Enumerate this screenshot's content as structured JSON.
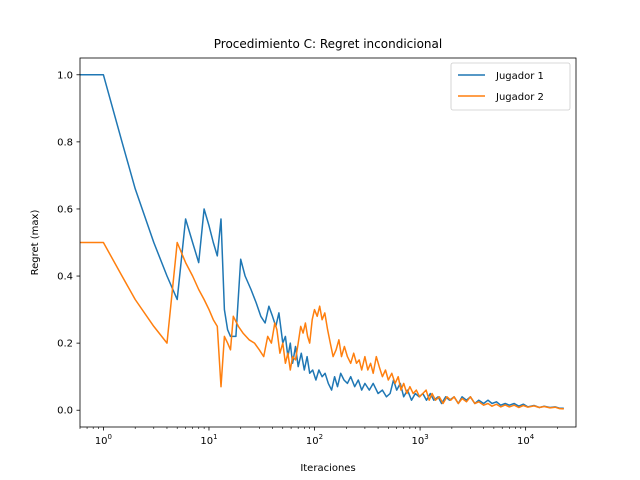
{
  "chart_data": {
    "type": "line",
    "title": "Procedimiento C: Regret incondicional",
    "xlabel": "Iteraciones",
    "ylabel": "Regret (max)",
    "xscale": "log",
    "xlim": [
      0.6,
      30000
    ],
    "ylim": [
      -0.05,
      1.05
    ],
    "xticks": [
      {
        "value": 1,
        "base": "10",
        "exp": "0"
      },
      {
        "value": 10,
        "base": "10",
        "exp": "1"
      },
      {
        "value": 100,
        "base": "10",
        "exp": "2"
      },
      {
        "value": 1000,
        "base": "10",
        "exp": "3"
      },
      {
        "value": 10000,
        "base": "10",
        "exp": "4"
      }
    ],
    "yticks": [
      {
        "value": 0.0,
        "label": "0.0"
      },
      {
        "value": 0.2,
        "label": "0.2"
      },
      {
        "value": 0.4,
        "label": "0.4"
      },
      {
        "value": 0.6,
        "label": "0.6"
      },
      {
        "value": 0.8,
        "label": "0.8"
      },
      {
        "value": 1.0,
        "label": "1.0"
      }
    ],
    "grid": false,
    "legend_position": "top-right",
    "series": [
      {
        "name": "Jugador 1",
        "color": "#1f77b4",
        "points": [
          [
            0.6,
            1.0
          ],
          [
            1,
            1.0
          ],
          [
            1.5,
            0.8
          ],
          [
            2,
            0.66
          ],
          [
            3,
            0.5
          ],
          [
            4,
            0.4
          ],
          [
            5,
            0.33
          ],
          [
            6,
            0.57
          ],
          [
            7,
            0.5
          ],
          [
            8,
            0.44
          ],
          [
            9,
            0.6
          ],
          [
            10,
            0.55
          ],
          [
            11,
            0.5
          ],
          [
            12,
            0.46
          ],
          [
            13,
            0.57
          ],
          [
            14,
            0.3
          ],
          [
            15,
            0.24
          ],
          [
            16,
            0.22
          ],
          [
            18,
            0.22
          ],
          [
            20,
            0.45
          ],
          [
            22,
            0.4
          ],
          [
            25,
            0.36
          ],
          [
            28,
            0.32
          ],
          [
            31,
            0.28
          ],
          [
            34,
            0.26
          ],
          [
            37,
            0.31
          ],
          [
            40,
            0.28
          ],
          [
            43,
            0.25
          ],
          [
            46,
            0.29
          ],
          [
            50,
            0.2
          ],
          [
            53,
            0.22
          ],
          [
            56,
            0.16
          ],
          [
            59,
            0.2
          ],
          [
            62,
            0.14
          ],
          [
            66,
            0.19
          ],
          [
            70,
            0.13
          ],
          [
            75,
            0.17
          ],
          [
            80,
            0.12
          ],
          [
            85,
            0.16
          ],
          [
            90,
            0.11
          ],
          [
            96,
            0.12
          ],
          [
            103,
            0.09
          ],
          [
            110,
            0.12
          ],
          [
            118,
            0.1
          ],
          [
            126,
            0.11
          ],
          [
            135,
            0.08
          ],
          [
            145,
            0.06
          ],
          [
            155,
            0.1
          ],
          [
            165,
            0.07
          ],
          [
            177,
            0.11
          ],
          [
            190,
            0.09
          ],
          [
            205,
            0.08
          ],
          [
            220,
            0.1
          ],
          [
            240,
            0.07
          ],
          [
            260,
            0.09
          ],
          [
            280,
            0.06
          ],
          [
            300,
            0.08
          ],
          [
            330,
            0.06
          ],
          [
            360,
            0.08
          ],
          [
            400,
            0.05
          ],
          [
            440,
            0.06
          ],
          [
            480,
            0.04
          ],
          [
            520,
            0.05
          ],
          [
            560,
            0.09
          ],
          [
            600,
            0.06
          ],
          [
            650,
            0.08
          ],
          [
            700,
            0.04
          ],
          [
            760,
            0.06
          ],
          [
            830,
            0.03
          ],
          [
            900,
            0.05
          ],
          [
            980,
            0.04
          ],
          [
            1060,
            0.05
          ],
          [
            1150,
            0.03
          ],
          [
            1250,
            0.05
          ],
          [
            1350,
            0.03
          ],
          [
            1480,
            0.04
          ],
          [
            1600,
            0.02
          ],
          [
            1750,
            0.04
          ],
          [
            1900,
            0.03
          ],
          [
            2100,
            0.04
          ],
          [
            2300,
            0.02
          ],
          [
            2500,
            0.04
          ],
          [
            2750,
            0.03
          ],
          [
            3000,
            0.04
          ],
          [
            3300,
            0.02
          ],
          [
            3600,
            0.03
          ],
          [
            4000,
            0.02
          ],
          [
            4400,
            0.03
          ],
          [
            4800,
            0.02
          ],
          [
            5300,
            0.025
          ],
          [
            5800,
            0.015
          ],
          [
            6400,
            0.02
          ],
          [
            7000,
            0.015
          ],
          [
            7800,
            0.02
          ],
          [
            8600,
            0.012
          ],
          [
            9500,
            0.018
          ],
          [
            10500,
            0.01
          ],
          [
            12000,
            0.014
          ],
          [
            13500,
            0.008
          ],
          [
            15000,
            0.012
          ],
          [
            17000,
            0.008
          ],
          [
            19000,
            0.01
          ],
          [
            21000,
            0.006
          ],
          [
            23000,
            0.006
          ]
        ]
      },
      {
        "name": "Jugador 2",
        "color": "#ff7f0e",
        "points": [
          [
            0.6,
            0.5
          ],
          [
            1,
            0.5
          ],
          [
            1.5,
            0.4
          ],
          [
            2,
            0.33
          ],
          [
            3,
            0.25
          ],
          [
            4,
            0.2
          ],
          [
            5,
            0.5
          ],
          [
            6,
            0.44
          ],
          [
            7,
            0.4
          ],
          [
            8,
            0.36
          ],
          [
            9,
            0.33
          ],
          [
            10,
            0.3
          ],
          [
            11,
            0.27
          ],
          [
            12,
            0.25
          ],
          [
            13,
            0.07
          ],
          [
            14,
            0.22
          ],
          [
            15,
            0.2
          ],
          [
            16,
            0.18
          ],
          [
            17,
            0.28
          ],
          [
            19,
            0.25
          ],
          [
            21,
            0.23
          ],
          [
            24,
            0.21
          ],
          [
            27,
            0.2
          ],
          [
            30,
            0.18
          ],
          [
            33,
            0.16
          ],
          [
            36,
            0.22
          ],
          [
            39,
            0.2
          ],
          [
            42,
            0.26
          ],
          [
            44,
            0.24
          ],
          [
            47,
            0.17
          ],
          [
            50,
            0.2
          ],
          [
            53,
            0.14
          ],
          [
            56,
            0.17
          ],
          [
            59,
            0.12
          ],
          [
            62,
            0.16
          ],
          [
            66,
            0.15
          ],
          [
            70,
            0.2
          ],
          [
            74,
            0.25
          ],
          [
            78,
            0.23
          ],
          [
            82,
            0.26
          ],
          [
            86,
            0.22
          ],
          [
            90,
            0.2
          ],
          [
            95,
            0.27
          ],
          [
            100,
            0.3
          ],
          [
            106,
            0.28
          ],
          [
            112,
            0.31
          ],
          [
            118,
            0.27
          ],
          [
            125,
            0.29
          ],
          [
            133,
            0.24
          ],
          [
            141,
            0.2
          ],
          [
            150,
            0.16
          ],
          [
            160,
            0.18
          ],
          [
            170,
            0.21
          ],
          [
            180,
            0.16
          ],
          [
            192,
            0.19
          ],
          [
            205,
            0.16
          ],
          [
            220,
            0.14
          ],
          [
            235,
            0.17
          ],
          [
            250,
            0.14
          ],
          [
            265,
            0.15
          ],
          [
            280,
            0.12
          ],
          [
            300,
            0.16
          ],
          [
            320,
            0.12
          ],
          [
            340,
            0.14
          ],
          [
            360,
            0.11
          ],
          [
            385,
            0.16
          ],
          [
            410,
            0.13
          ],
          [
            440,
            0.1
          ],
          [
            470,
            0.12
          ],
          [
            500,
            0.09
          ],
          [
            540,
            0.11
          ],
          [
            580,
            0.08
          ],
          [
            620,
            0.1
          ],
          [
            660,
            0.06
          ],
          [
            700,
            0.08
          ],
          [
            750,
            0.05
          ],
          [
            800,
            0.07
          ],
          [
            860,
            0.05
          ],
          [
            920,
            0.06
          ],
          [
            990,
            0.04
          ],
          [
            1060,
            0.05
          ],
          [
            1140,
            0.06
          ],
          [
            1220,
            0.03
          ],
          [
            1300,
            0.05
          ],
          [
            1400,
            0.03
          ],
          [
            1520,
            0.04
          ],
          [
            1650,
            0.02
          ],
          [
            1800,
            0.04
          ],
          [
            1950,
            0.03
          ],
          [
            2100,
            0.04
          ],
          [
            2300,
            0.02
          ],
          [
            2500,
            0.035
          ],
          [
            2750,
            0.025
          ],
          [
            3000,
            0.04
          ],
          [
            3300,
            0.02
          ],
          [
            3600,
            0.025
          ],
          [
            4000,
            0.015
          ],
          [
            4400,
            0.02
          ],
          [
            4800,
            0.012
          ],
          [
            5300,
            0.018
          ],
          [
            5800,
            0.01
          ],
          [
            6400,
            0.016
          ],
          [
            7000,
            0.01
          ],
          [
            7800,
            0.015
          ],
          [
            8600,
            0.008
          ],
          [
            9500,
            0.014
          ],
          [
            10500,
            0.009
          ],
          [
            12000,
            0.013
          ],
          [
            13500,
            0.008
          ],
          [
            15000,
            0.011
          ],
          [
            17000,
            0.007
          ],
          [
            19000,
            0.009
          ],
          [
            21000,
            0.005
          ],
          [
            23000,
            0.004
          ]
        ]
      }
    ]
  }
}
